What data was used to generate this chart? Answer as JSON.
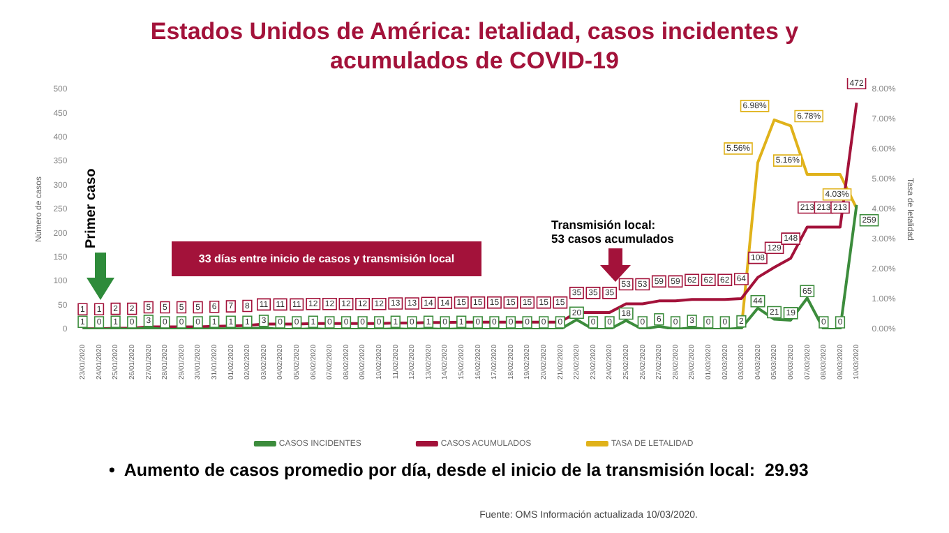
{
  "chart_data": {
    "type": "line",
    "title": "Estados Unidos de América: letalidad, casos incidentes y acumulados de COVID-19",
    "categories": [
      "23/01/2020",
      "24/01/2020",
      "25/01/2020",
      "26/01/2020",
      "27/01/2020",
      "28/01/2020",
      "29/01/2020",
      "30/01/2020",
      "31/01/2020",
      "01/02/2020",
      "02/02/2020",
      "03/02/2020",
      "04/02/2020",
      "05/02/2020",
      "06/02/2020",
      "07/02/2020",
      "08/02/2020",
      "09/02/2020",
      "10/02/2020",
      "11/02/2020",
      "12/02/2020",
      "13/02/2020",
      "14/02/2020",
      "15/02/2020",
      "16/02/2020",
      "17/02/2020",
      "18/02/2020",
      "19/02/2020",
      "20/02/2020",
      "21/02/2020",
      "22/02/2020",
      "23/02/2020",
      "24/02/2020",
      "25/02/2020",
      "26/02/2020",
      "27/02/2020",
      "28/02/2020",
      "29/02/2020",
      "01/03/2020",
      "02/03/2020",
      "03/03/2020",
      "04/03/2020",
      "05/03/2020",
      "06/03/2020",
      "07/03/2020",
      "08/03/2020",
      "09/03/2020",
      "10/03/2020"
    ],
    "series": [
      {
        "name": "CASOS INCIDENTES",
        "color": "#3c8c3c",
        "values": [
          1,
          0,
          1,
          0,
          3,
          0,
          0,
          0,
          1,
          1,
          1,
          3,
          0,
          0,
          1,
          0,
          0,
          0,
          0,
          1,
          0,
          1,
          0,
          1,
          0,
          0,
          0,
          0,
          0,
          0,
          20,
          0,
          0,
          18,
          0,
          6,
          0,
          3,
          0,
          0,
          2,
          44,
          21,
          19,
          65,
          0,
          0,
          259
        ],
        "value_labels": [
          "1",
          "0",
          "1",
          "0",
          "3",
          "0",
          "0",
          "0",
          "1",
          "1",
          "1",
          "3",
          "0",
          "0",
          "1",
          "0",
          "0",
          "0",
          "0",
          "1",
          "0",
          "1",
          "0",
          "1",
          "0",
          "0",
          "0",
          "0",
          "0",
          "0",
          "20",
          "0",
          "0",
          "18",
          "0",
          "6",
          "0",
          "3",
          "0",
          "0",
          "2",
          "44",
          "21",
          "19",
          "65",
          "0",
          "0",
          "259"
        ]
      },
      {
        "name": "CASOS ACUMULADOS",
        "color": "#a3123a",
        "values": [
          1,
          1,
          2,
          2,
          5,
          5,
          5,
          5,
          6,
          7,
          8,
          11,
          11,
          11,
          12,
          12,
          12,
          12,
          12,
          13,
          13,
          14,
          14,
          15,
          15,
          15,
          15,
          15,
          15,
          15,
          35,
          35,
          35,
          53,
          53,
          59,
          59,
          62,
          62,
          62,
          64,
          108,
          129,
          148,
          213,
          213,
          213,
          472
        ],
        "value_labels": [
          "1",
          "1",
          "2",
          "2",
          "5",
          "5",
          "5",
          "5",
          "6",
          "7",
          "8",
          "11",
          "11",
          "11",
          "12",
          "12",
          "12",
          "12",
          "12",
          "13",
          "13",
          "14",
          "14",
          "15",
          "15",
          "15",
          "15",
          "15",
          "15",
          "15",
          "35",
          "35",
          "35",
          "53",
          "53",
          "59",
          "59",
          "62",
          "62",
          "62",
          "64",
          "108",
          "129",
          "148",
          "213",
          "213",
          "213",
          "472"
        ]
      },
      {
        "name": "TASA DE LETALIDAD",
        "color": "#e0b21a",
        "axis": "y2",
        "values": [
          null,
          null,
          null,
          null,
          null,
          null,
          null,
          null,
          null,
          null,
          null,
          null,
          null,
          null,
          null,
          null,
          null,
          null,
          null,
          null,
          null,
          null,
          null,
          null,
          null,
          null,
          null,
          null,
          null,
          null,
          null,
          null,
          null,
          null,
          null,
          null,
          null,
          null,
          null,
          null,
          0,
          5.56,
          6.98,
          6.78,
          5.16,
          5.16,
          5.16,
          4.03
        ],
        "value_labels": [
          null,
          null,
          null,
          null,
          null,
          null,
          null,
          null,
          null,
          null,
          null,
          null,
          null,
          null,
          null,
          null,
          null,
          null,
          null,
          null,
          null,
          null,
          null,
          null,
          null,
          null,
          null,
          null,
          null,
          null,
          null,
          null,
          null,
          null,
          null,
          null,
          null,
          null,
          null,
          null,
          null,
          "5.56%",
          "6.98%",
          "6.78%",
          "5.16%",
          null,
          null,
          "4.03%"
        ]
      }
    ],
    "ylabel": "Número de casos",
    "y2label": "Tasa de letalidad",
    "ylim": [
      0,
      500
    ],
    "yticks": [
      0,
      50,
      100,
      150,
      200,
      250,
      300,
      350,
      400,
      450,
      500
    ],
    "y2lim": [
      0,
      8
    ],
    "y2ticks": [
      {
        "value": 0,
        "label": "0.00%"
      },
      {
        "value": 1,
        "label": "1.00%"
      },
      {
        "value": 2,
        "label": "2.00%"
      },
      {
        "value": 3,
        "label": "3.00%"
      },
      {
        "value": 4,
        "label": "4.00%"
      },
      {
        "value": 5,
        "label": "5.00%"
      },
      {
        "value": 6,
        "label": "6.00%"
      },
      {
        "value": 7,
        "label": "7.00%"
      },
      {
        "value": 8,
        "label": "8.00%"
      }
    ],
    "grid": false,
    "legend": "bottom",
    "marker": "none",
    "line_style": "solid",
    "annotations": [
      "Primer caso",
      "33 días entre inicio de casos y transmisión local",
      "Transmisión local:\n53 casos acumulados",
      "•  Aumento de casos promedio por día, desde el inicio de la transmisión local:  29.93",
      "Fuente: OMS Información actualizada 10/03/2020."
    ]
  }
}
